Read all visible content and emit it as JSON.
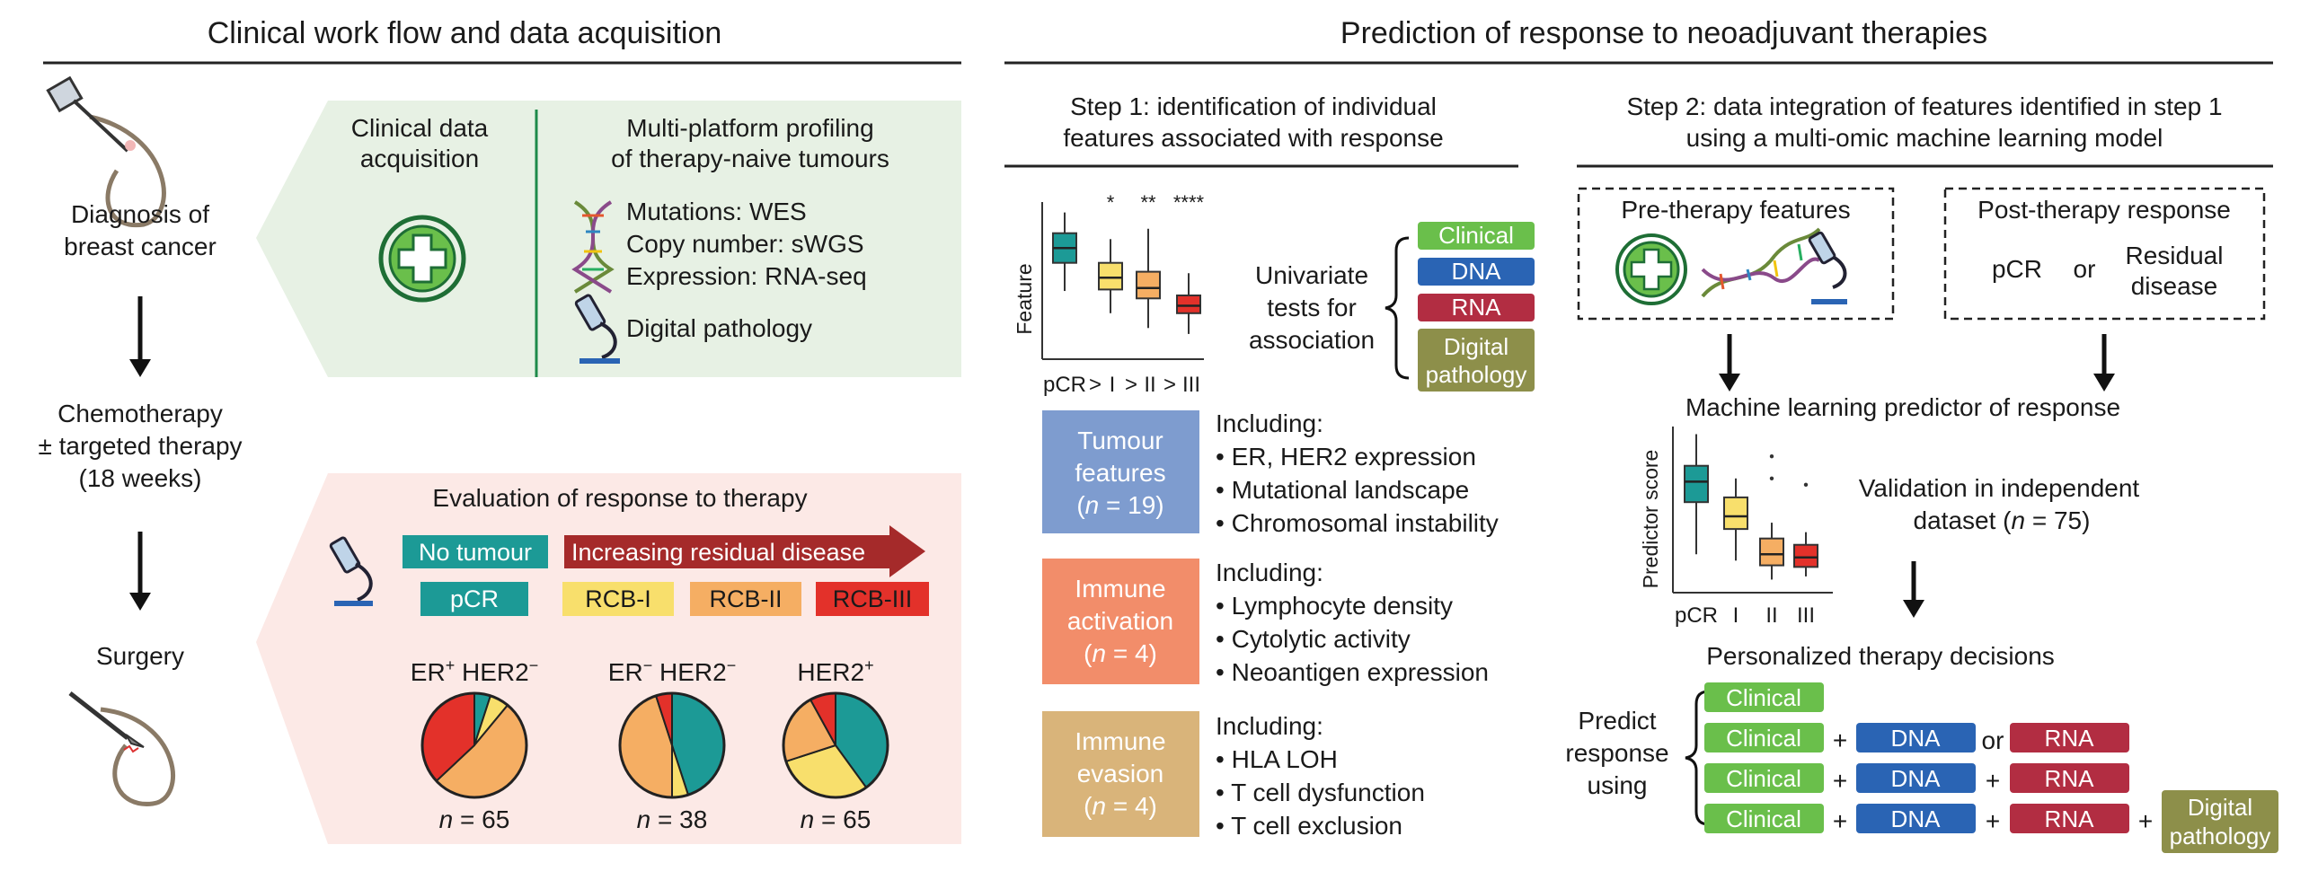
{
  "colors": {
    "clinical": "#6abf4b",
    "dna": "#2a64b4",
    "rna": "#b22d42",
    "pathology": "#8d8f4a",
    "teal": "#1c9a96",
    "yellow": "#f8df6c",
    "orange": "#f5ae63",
    "red": "#e3312a",
    "green_panel": "#e7f1e4",
    "red_panel": "#fce9e6",
    "tumour_box": "#7e9ccf",
    "immune_act_box": "#f28d6a",
    "immune_eva_box": "#d9b47a",
    "arrow_dark_red": "#a52a2a"
  },
  "left": {
    "title": "Clinical work flow and data acquisition",
    "stage1": [
      "Diagnosis of",
      "breast cancer"
    ],
    "stage2": [
      "Chemotherapy",
      "± targeted therapy",
      "(18 weeks)"
    ],
    "stage3": "Surgery",
    "clinical_acq": [
      "Clinical data",
      "acquisition"
    ],
    "profiling_title": [
      "Multi-platform profiling",
      "of therapy-naive tumours"
    ],
    "profiling_items": [
      "Mutations: WES",
      "Copy number: sWGS",
      "Expression: RNA-seq"
    ],
    "digital_pathology": "Digital pathology",
    "eval_title": "Evaluation of response to therapy",
    "no_tumour": "No tumour",
    "increasing": "Increasing residual disease",
    "classes": [
      "pCR",
      "RCB-I",
      "RCB-II",
      "RCB-III"
    ],
    "pies": [
      {
        "er": "ER",
        "er_sign": "+",
        "her": " HER2",
        "her_sign": "−",
        "n": "65",
        "n_label": "n",
        "eq": " = "
      },
      {
        "er": "ER",
        "er_sign": "−",
        "her": " HER2",
        "her_sign": "−",
        "n": "38",
        "n_label": "n",
        "eq": " = "
      },
      {
        "er": "",
        "er_sign": "",
        "her": "HER2",
        "her_sign": "+",
        "n": "65",
        "n_label": "n",
        "eq": " = "
      }
    ]
  },
  "pie_data": [
    {
      "pCR": 0.05,
      "RCB-I": 0.06,
      "RCB-II": 0.52,
      "RCB-III": 0.37
    },
    {
      "pCR": 0.45,
      "RCB-I": 0.05,
      "RCB-II": 0.45,
      "RCB-III": 0.05
    },
    {
      "pCR": 0.4,
      "RCB-I": 0.3,
      "RCB-II": 0.22,
      "RCB-III": 0.08
    }
  ],
  "right": {
    "title": "Prediction of response to neoadjuvant therapies",
    "step1": [
      "Step 1: identification of individual",
      "features associated with response"
    ],
    "step2": [
      "Step 2: data integration of features identified in step 1",
      "using a multi-omic machine learning model"
    ],
    "feature_axis": "Feature",
    "feature_x": [
      "pCR",
      ">",
      "I",
      ">",
      "II",
      ">",
      "III"
    ],
    "stars": [
      "*",
      "**",
      "****"
    ],
    "univariate": [
      "Univariate",
      "tests for",
      "association"
    ],
    "data_types": [
      "Clinical",
      "DNA",
      "RNA",
      "Digital",
      "pathology"
    ],
    "groups": [
      {
        "box": [
          "Tumour",
          "features"
        ],
        "n_label": "n",
        "n": " = 19)",
        "open": "(",
        "including": "Including:",
        "items": [
          "ER, HER2 expression",
          "Mutational landscape",
          "Chromosomal instability"
        ]
      },
      {
        "box": [
          "Immune",
          "activation"
        ],
        "n_label": "n",
        "n": " = 4)",
        "open": "(",
        "including": "Including:",
        "items": [
          "Lymphocyte density",
          "Cytolytic activity",
          "Neoantigen expression"
        ]
      },
      {
        "box": [
          "Immune",
          "evasion"
        ],
        "n_label": "n",
        "n": " = 4)",
        "open": "(",
        "including": "Including:",
        "items": [
          "HLA LOH",
          "T cell dysfunction",
          "T cell exclusion"
        ]
      }
    ],
    "pre_therapy": "Pre-therapy features",
    "post_therapy": "Post-therapy response",
    "pcr": "pCR",
    "or": "or",
    "residual": [
      "Residual",
      "disease"
    ],
    "ml_title": "Machine learning predictor of response",
    "predictor_axis": "Predictor score",
    "predictor_x": [
      "pCR",
      "I",
      "II",
      "III"
    ],
    "validation": [
      "Validation in independent",
      "dataset ("
    ],
    "validation_n_label": "n",
    "validation_n": " = 75)",
    "personalized": "Personalized therapy decisions",
    "predict": [
      "Predict",
      "response",
      "using"
    ],
    "plus": "+",
    "or_word": "or",
    "digital_pathology_box": [
      "Digital",
      "pathology"
    ]
  },
  "chart_data": [
    {
      "type": "box",
      "name": "feature boxplot",
      "categories": [
        "pCR",
        "I",
        "II",
        "III"
      ],
      "boxes": [
        {
          "q1": 0.62,
          "median": 0.72,
          "q3": 0.82,
          "lo": 0.43,
          "hi": 0.96
        },
        {
          "q1": 0.44,
          "median": 0.52,
          "q3": 0.62,
          "lo": 0.28,
          "hi": 0.78
        },
        {
          "q1": 0.38,
          "median": 0.45,
          "q3": 0.56,
          "lo": 0.18,
          "hi": 0.85
        },
        {
          "q1": 0.28,
          "median": 0.33,
          "q3": 0.4,
          "lo": 0.14,
          "hi": 0.55
        }
      ]
    },
    {
      "type": "box",
      "name": "predictor boxplot",
      "categories": [
        "pCR",
        "I",
        "II",
        "III"
      ],
      "boxes": [
        {
          "q1": 0.55,
          "median": 0.68,
          "q3": 0.78,
          "lo": 0.22,
          "hi": 0.98
        },
        {
          "q1": 0.38,
          "median": 0.46,
          "q3": 0.58,
          "lo": 0.18,
          "hi": 0.7
        },
        {
          "q1": 0.15,
          "median": 0.22,
          "q3": 0.32,
          "lo": 0.06,
          "hi": 0.42
        },
        {
          "q1": 0.14,
          "median": 0.2,
          "q3": 0.28,
          "lo": 0.08,
          "hi": 0.36
        }
      ],
      "outliers": [
        {
          "cat": "II",
          "v": 0.84
        },
        {
          "cat": "II",
          "v": 0.7
        },
        {
          "cat": "III",
          "v": 0.66
        }
      ]
    }
  ]
}
